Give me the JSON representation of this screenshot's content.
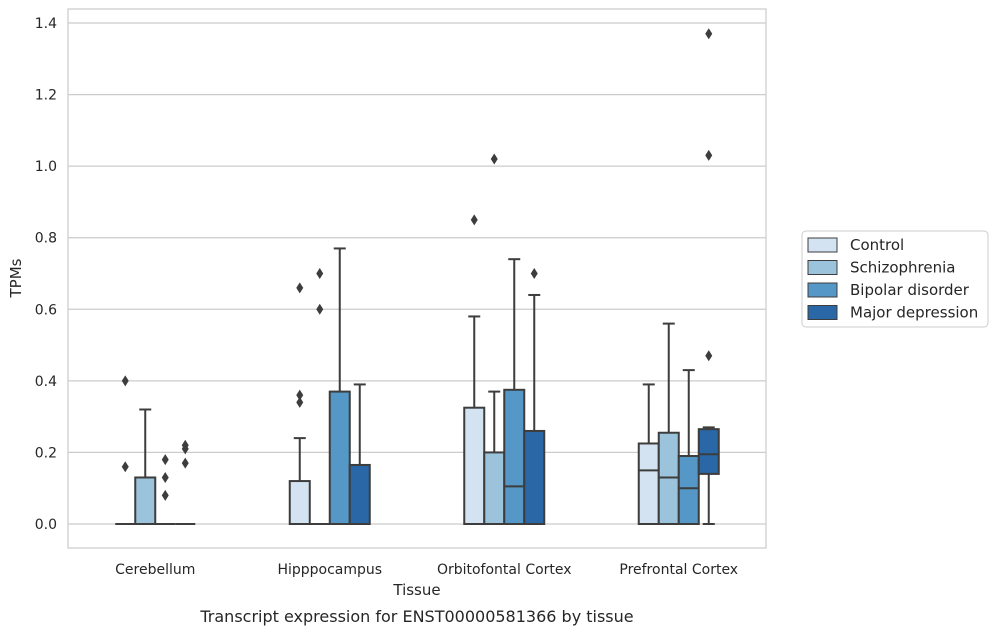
{
  "caption": "Transcript expression for ENST00000581366 by tissue",
  "chart_data": {
    "type": "box",
    "xlabel": "Tissue",
    "ylabel": "TPMs",
    "ylim": [
      -0.065,
      1.44
    ],
    "yticks": [
      "0.0",
      "0.2",
      "0.4",
      "0.6",
      "0.8",
      "1.0",
      "1.2",
      "1.4"
    ],
    "grid": "horizontal",
    "legend_position": "right",
    "categories": [
      "Cerebellum",
      "Hipppocampus",
      "Orbitofontal Cortex",
      "Prefrontal Cortex"
    ],
    "series": [
      {
        "name": "Control",
        "color": "#d4e3f1",
        "boxes": [
          {
            "q1": 0,
            "median": 0,
            "q3": 0,
            "whisker_low": 0,
            "whisker_high": 0,
            "outliers": [
              0.4,
              0.16
            ]
          },
          {
            "q1": 0,
            "median": 0,
            "q3": 0.12,
            "whisker_low": 0,
            "whisker_high": 0.24,
            "outliers": [
              0.66,
              0.36,
              0.34
            ]
          },
          {
            "q1": 0,
            "median": 0,
            "q3": 0.325,
            "whisker_low": 0,
            "whisker_high": 0.58,
            "outliers": [
              0.85
            ]
          },
          {
            "q1": 0,
            "median": 0.15,
            "q3": 0.225,
            "whisker_low": 0,
            "whisker_high": 0.39,
            "outliers": []
          }
        ]
      },
      {
        "name": "Schizophrenia",
        "color": "#9cc3dc",
        "boxes": [
          {
            "q1": 0,
            "median": 0,
            "q3": 0.13,
            "whisker_low": 0,
            "whisker_high": 0.32,
            "outliers": []
          },
          {
            "q1": 0,
            "median": 0,
            "q3": 0,
            "whisker_low": 0,
            "whisker_high": 0,
            "outliers": [
              0.7,
              0.6
            ]
          },
          {
            "q1": 0,
            "median": 0,
            "q3": 0.2,
            "whisker_low": 0,
            "whisker_high": 0.37,
            "outliers": [
              1.02
            ]
          },
          {
            "q1": 0,
            "median": 0.13,
            "q3": 0.255,
            "whisker_low": 0,
            "whisker_high": 0.56,
            "outliers": []
          }
        ]
      },
      {
        "name": "Bipolar disorder",
        "color": "#5597c6",
        "boxes": [
          {
            "q1": 0,
            "median": 0,
            "q3": 0,
            "whisker_low": 0,
            "whisker_high": 0,
            "outliers": [
              0.18,
              0.13,
              0.08
            ]
          },
          {
            "q1": 0,
            "median": 0,
            "q3": 0.37,
            "whisker_low": 0,
            "whisker_high": 0.77,
            "outliers": []
          },
          {
            "q1": 0,
            "median": 0.105,
            "q3": 0.375,
            "whisker_low": 0,
            "whisker_high": 0.74,
            "outliers": []
          },
          {
            "q1": 0,
            "median": 0.1,
            "q3": 0.19,
            "whisker_low": 0,
            "whisker_high": 0.43,
            "outliers": []
          }
        ]
      },
      {
        "name": "Major depression",
        "color": "#2a67a6",
        "boxes": [
          {
            "q1": 0,
            "median": 0,
            "q3": 0,
            "whisker_low": 0,
            "whisker_high": 0,
            "outliers": [
              0.22,
              0.21,
              0.17
            ]
          },
          {
            "q1": 0,
            "median": 0,
            "q3": 0.165,
            "whisker_low": 0,
            "whisker_high": 0.39,
            "outliers": []
          },
          {
            "q1": 0,
            "median": 0,
            "q3": 0.26,
            "whisker_low": 0,
            "whisker_high": 0.64,
            "outliers": [
              0.7
            ]
          },
          {
            "q1": 0.14,
            "median": 0.195,
            "q3": 0.265,
            "whisker_low": 0,
            "whisker_high": 0.27,
            "outliers": [
              1.37,
              1.03,
              0.47
            ]
          }
        ]
      }
    ]
  }
}
